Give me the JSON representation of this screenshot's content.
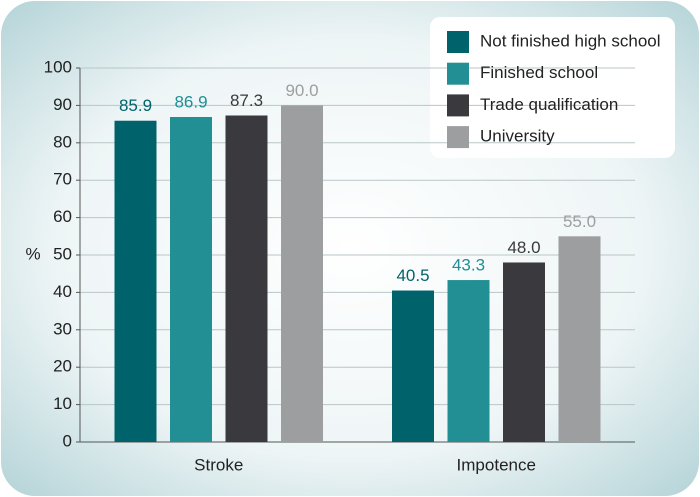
{
  "chart_data": {
    "type": "bar",
    "y_label": "%",
    "categories": [
      "Stroke",
      "Impotence"
    ],
    "series": [
      {
        "name": "Not finished high school",
        "color": "#00636b",
        "values": [
          85.9,
          40.5
        ],
        "value_labels": [
          "85.9",
          "40.5"
        ]
      },
      {
        "name": "Finished school",
        "color": "#218f93",
        "values": [
          86.9,
          43.3
        ],
        "value_labels": [
          "86.9",
          "43.3"
        ]
      },
      {
        "name": "Trade qualification",
        "color": "#3a3a3e",
        "values": [
          87.3,
          48.0
        ],
        "value_labels": [
          "87.3",
          "48.0"
        ]
      },
      {
        "name": "University",
        "color": "#9d9ea0",
        "values": [
          90.0,
          55.0
        ],
        "value_labels": [
          "90.0",
          "55.0"
        ]
      }
    ],
    "ylim": [
      0,
      100
    ],
    "yticks": [
      0,
      10,
      20,
      30,
      40,
      50,
      60,
      70,
      80,
      90,
      100
    ],
    "grid": true,
    "legend": "top-right"
  }
}
